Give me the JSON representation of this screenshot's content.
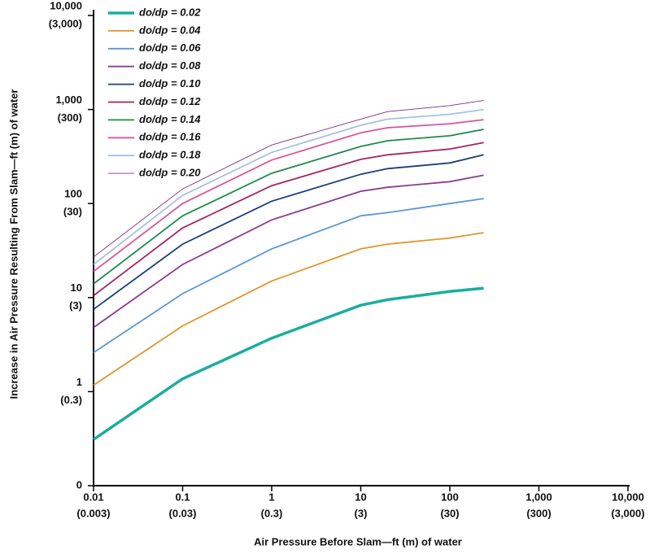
{
  "chart_data": {
    "type": "line",
    "xlabel": "Air Pressure Before Slam—ft (m) of water",
    "ylabel": "Increase in Air Pressure Resulting From Slam—ft (m) of water",
    "xscale": "log",
    "yscale": "log",
    "xlim": [
      0.01,
      10000
    ],
    "ylim": [
      0.1,
      10000
    ],
    "xticks": [
      0.01,
      0.1,
      1,
      10,
      100,
      {
        "value": 1000,
        "label": "1,000"
      },
      {
        "value": 10000,
        "label": "10,000"
      }
    ],
    "xtick_metric_labels": [
      "(0.003)",
      "(0.03)",
      "(0.3)",
      "(3)",
      "(30)",
      "(300)",
      "(3,000)"
    ],
    "yticks": [
      {
        "value": 0.1,
        "label": "0"
      },
      1,
      10,
      100,
      {
        "value": 1000,
        "label": "1,000"
      },
      {
        "value": 10000,
        "label": "10,000"
      }
    ],
    "ytick_metric_labels": [
      null,
      "(0.3)",
      "(3)",
      "(30)",
      "(300)",
      "(3,000)"
    ],
    "legend": "upper left",
    "x": [
      0.01,
      0.1,
      1,
      10,
      20,
      100,
      240
    ],
    "series": [
      {
        "name": "do/dp = 0.02",
        "color": "#1aada0",
        "width": 3.5,
        "values": [
          0.31,
          1.37,
          3.7,
          8.3,
          9.5,
          11.6,
          12.6
        ]
      },
      {
        "name": "do/dp = 0.04",
        "color": "#e0962c",
        "width": 1.8,
        "values": [
          1.17,
          5.0,
          15,
          33,
          37,
          43,
          49
        ]
      },
      {
        "name": "do/dp = 0.06",
        "color": "#5b97d1",
        "width": 1.8,
        "values": [
          2.6,
          11,
          33,
          74,
          80,
          100,
          113
        ]
      },
      {
        "name": "do/dp = 0.08",
        "color": "#8e3a8f",
        "width": 1.8,
        "values": [
          4.8,
          22.5,
          67,
          135,
          149,
          171,
          200
        ]
      },
      {
        "name": "do/dp = 0.10",
        "color": "#1b3f7c",
        "width": 1.8,
        "values": [
          7.5,
          37,
          106,
          205,
          235,
          270,
          330
        ]
      },
      {
        "name": "do/dp = 0.12",
        "color": "#a8255e",
        "width": 1.8,
        "values": [
          10.5,
          55,
          155,
          295,
          330,
          380,
          445
        ]
      },
      {
        "name": "do/dp = 0.14",
        "color": "#1f8a4c",
        "width": 1.8,
        "values": [
          14,
          74,
          210,
          405,
          465,
          525,
          615
        ]
      },
      {
        "name": "do/dp = 0.16",
        "color": "#d9569a",
        "width": 1.8,
        "values": [
          19,
          100,
          290,
          565,
          640,
          705,
          780
        ]
      },
      {
        "name": "do/dp = 0.18",
        "color": "#a4c1e6",
        "width": 1.8,
        "values": [
          22.5,
          122,
          350,
          680,
          790,
          890,
          1000
        ]
      },
      {
        "name": "do/dp = 0.20",
        "color": "#7a2d8c",
        "width": 0.9,
        "values": [
          27,
          143,
          420,
          790,
          950,
          1100,
          1250
        ]
      }
    ]
  }
}
